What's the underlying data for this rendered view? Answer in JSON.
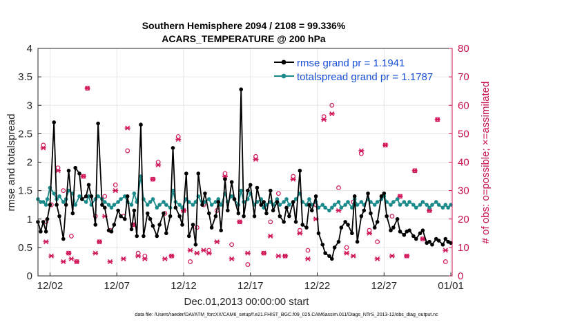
{
  "chart_data": {
    "type": "line",
    "title": "Southern Hemisphere 2094 / 2108 = 99.336%",
    "subtitle": "ACARS_TEMPERATURE @ 200 hPa",
    "xlabel": "Dec.01,2013 00:00:00 start",
    "ylabel": "rmse and totalspread",
    "ylabel_right": "# of obs: o=possible; ×=assimilated",
    "footnote": "data file: /Users/raeder/DAI/ATM_forcXX/CAM6_setup/f.e21.FHIST_BGC.f09_025.CAM6assim.011/Diags_NTrS_2013-12/obs_diag_output.nc",
    "xlim": [
      0.6,
      31.6
    ],
    "ylim": [
      0,
      4
    ],
    "ylim_right": [
      0,
      80
    ],
    "x_ticks": [
      1.5,
      6.5,
      11.5,
      16.5,
      21.5,
      26.5,
      31.5
    ],
    "x_tick_labels": [
      "12/02",
      "12/07",
      "12/12",
      "12/17",
      "12/22",
      "12/27",
      "01/01"
    ],
    "y_ticks": [
      0,
      0.5,
      1,
      1.5,
      2,
      2.5,
      3,
      3.5,
      4
    ],
    "y_tick_labels": [
      "0",
      "0.5",
      "1",
      "1.5",
      "2",
      "2.5",
      "3",
      "3.5",
      "4"
    ],
    "y_ticks_right": [
      0,
      10,
      20,
      30,
      40,
      50,
      60,
      70,
      80
    ],
    "y_tick_labels_right": [
      "0",
      "10",
      "20",
      "30",
      "40",
      "50",
      "60",
      "70",
      "80"
    ],
    "grid": true,
    "legend_position": "top-right",
    "colors": {
      "rmse": "#000000",
      "spread": "#1a8a8a",
      "obs": "#d1185a",
      "legend_text": "#1a4fd6"
    },
    "series": [
      {
        "name": "rmse grand pr = 1.1941",
        "x": [
          0.6,
          0.8,
          1.0,
          1.2,
          1.3,
          1.5,
          1.8,
          2.0,
          2.2,
          2.5,
          2.7,
          2.9,
          3.2,
          3.4,
          3.7,
          3.9,
          4.2,
          4.4,
          4.6,
          4.9,
          5.1,
          5.4,
          5.6,
          5.9,
          6.1,
          6.3,
          6.6,
          6.8,
          7.1,
          7.3,
          7.6,
          7.8,
          8.0,
          8.3,
          8.5,
          8.8,
          9.0,
          9.2,
          9.5,
          9.7,
          10.0,
          10.2,
          10.5,
          10.7,
          10.9,
          11.2,
          11.4,
          11.7,
          11.9,
          12.2,
          12.4,
          12.6,
          12.9,
          13.1,
          13.4,
          13.6,
          13.9,
          14.1,
          14.3,
          14.6,
          14.8,
          15.1,
          15.3,
          15.6,
          15.8,
          16.0,
          16.3,
          16.5,
          16.8,
          17.0,
          17.3,
          17.5,
          17.7,
          18.0,
          18.2,
          18.5,
          18.7,
          19.0,
          19.2,
          19.4,
          19.7,
          19.9,
          20.2,
          20.4,
          20.7,
          20.9,
          21.1,
          21.4,
          21.6,
          21.9,
          22.1,
          22.4,
          22.6,
          22.8,
          23.1,
          23.3,
          23.6,
          23.8,
          24.1,
          24.3,
          24.5,
          24.8,
          25.0,
          25.3,
          25.5,
          25.8,
          26.0,
          26.3,
          26.5,
          26.7,
          27.0,
          27.2,
          27.5,
          27.7,
          28.0,
          28.2,
          28.4,
          28.7,
          28.9,
          29.2,
          29.4,
          29.7,
          29.9,
          30.1,
          30.4,
          30.6,
          30.9,
          31.1,
          31.3,
          31.5
        ],
        "values": [
          0.95,
          0.78,
          0.95,
          0.78,
          1.0,
          1.25,
          2.7,
          1.25,
          1.05,
          0.65,
          1.25,
          1.85,
          1.1,
          1.9,
          1.8,
          1.35,
          1.4,
          1.6,
          1.4,
          0.9,
          2.68,
          1.25,
          1.2,
          0.8,
          0.78,
          0.9,
          1.15,
          1.05,
          1.0,
          1.4,
          0.82,
          1.15,
          0.7,
          2.66,
          0.7,
          1.1,
          1.0,
          0.88,
          0.7,
          0.9,
          1.1,
          0.75,
          1.05,
          2.25,
          1.2,
          1.05,
          0.9,
          1.8,
          0.7,
          0.9,
          0.55,
          1.8,
          1.25,
          1.45,
          1.1,
          0.85,
          1.05,
          1.3,
          0.8,
          1.7,
          1.15,
          1.65,
          1.35,
          1.1,
          3.28,
          1.05,
          1.5,
          1.6,
          1.05,
          1.55,
          1.25,
          1.3,
          1.1,
          1.5,
          1.15,
          1.3,
          1.05,
          0.95,
          1.2,
          1.05,
          1.3,
          0.95,
          1.85,
          0.9,
          0.85,
          1.25,
          1.15,
          1.4,
          0.75,
          0.55,
          0.4,
          0.35,
          0.3,
          0.5,
          0.6,
          0.85,
          0.95,
          0.9,
          0.75,
          1.4,
          0.6,
          1.05,
          1.15,
          1.45,
          1.1,
          0.85,
          0.95,
          1.4,
          1.45,
          1.05,
          0.8,
          0.85,
          1.0,
          0.78,
          0.72,
          0.78,
          0.8,
          0.7,
          0.65,
          0.75,
          0.8,
          0.58,
          0.6,
          0.55,
          0.65,
          0.62,
          0.55,
          0.65,
          0.6,
          0.58
        ]
      },
      {
        "name": "totalspread grand pr = 1.1787",
        "x": [
          0.6,
          0.8,
          1.0,
          1.2,
          1.3,
          1.5,
          1.8,
          2.0,
          2.2,
          2.5,
          2.7,
          2.9,
          3.2,
          3.4,
          3.7,
          3.9,
          4.2,
          4.4,
          4.6,
          4.9,
          5.1,
          5.4,
          5.6,
          5.9,
          6.1,
          6.3,
          6.6,
          6.8,
          7.1,
          7.3,
          7.6,
          7.8,
          8.0,
          8.3,
          8.5,
          8.8,
          9.0,
          9.2,
          9.5,
          9.7,
          10.0,
          10.2,
          10.5,
          10.7,
          10.9,
          11.2,
          11.4,
          11.7,
          11.9,
          12.2,
          12.4,
          12.6,
          12.9,
          13.1,
          13.4,
          13.6,
          13.9,
          14.1,
          14.3,
          14.6,
          14.8,
          15.1,
          15.3,
          15.6,
          15.8,
          16.0,
          16.3,
          16.5,
          16.8,
          17.0,
          17.3,
          17.5,
          17.7,
          18.0,
          18.2,
          18.5,
          18.7,
          19.0,
          19.2,
          19.4,
          19.7,
          19.9,
          20.2,
          20.4,
          20.7,
          20.9,
          21.1,
          21.4,
          21.6,
          21.9,
          22.1,
          22.4,
          22.6,
          22.8,
          23.1,
          23.3,
          23.6,
          23.8,
          24.1,
          24.3,
          24.5,
          24.8,
          25.0,
          25.3,
          25.5,
          25.8,
          26.0,
          26.3,
          26.5,
          26.7,
          27.0,
          27.2,
          27.5,
          27.7,
          28.0,
          28.2,
          28.4,
          28.7,
          28.9,
          29.2,
          29.4,
          29.7,
          29.9,
          30.1,
          30.4,
          30.6,
          30.9,
          31.1,
          31.3,
          31.5
        ],
        "values": [
          1.35,
          1.3,
          1.3,
          1.25,
          1.35,
          1.55,
          1.45,
          1.35,
          1.4,
          1.3,
          1.35,
          1.5,
          1.45,
          1.25,
          1.4,
          1.35,
          1.3,
          1.4,
          1.25,
          1.35,
          1.4,
          1.35,
          1.3,
          1.25,
          1.2,
          1.25,
          1.3,
          1.35,
          1.4,
          1.3,
          1.25,
          1.45,
          1.3,
          1.75,
          1.35,
          1.25,
          1.3,
          1.35,
          1.2,
          1.25,
          1.3,
          1.25,
          1.2,
          1.5,
          1.3,
          1.25,
          1.2,
          1.35,
          1.3,
          1.25,
          1.3,
          1.4,
          1.25,
          1.3,
          1.35,
          1.25,
          1.3,
          1.35,
          1.25,
          1.45,
          1.3,
          1.4,
          1.35,
          1.25,
          1.5,
          1.3,
          1.35,
          1.45,
          1.25,
          1.3,
          1.35,
          1.2,
          1.25,
          1.3,
          1.25,
          1.35,
          1.25,
          1.3,
          1.35,
          1.25,
          1.3,
          1.35,
          1.45,
          1.3,
          1.25,
          1.35,
          1.25,
          1.3,
          1.2,
          1.25,
          1.2,
          1.15,
          1.2,
          1.25,
          1.3,
          1.2,
          1.25,
          1.3,
          1.2,
          1.35,
          1.25,
          1.3,
          1.25,
          1.35,
          1.3,
          1.25,
          1.3,
          1.35,
          1.4,
          1.3,
          1.25,
          1.3,
          1.35,
          1.25,
          1.3,
          1.25,
          1.3,
          1.25,
          1.2,
          1.25,
          1.3,
          1.25,
          1.2,
          1.25,
          1.3,
          1.25,
          1.2,
          1.25,
          1.2,
          1.25
        ]
      }
    ],
    "obs_possible": {
      "x": [
        1.0,
        1.2,
        1.6,
        2.1,
        2.5,
        2.9,
        3.1,
        3.5,
        4.0,
        4.3,
        4.9,
        5.2,
        5.6,
        6.0,
        6.4,
        7.0,
        7.3,
        7.7,
        8.1,
        8.6,
        9.2,
        9.6,
        10.1,
        10.6,
        11.1,
        11.5,
        12.0,
        12.5,
        13.0,
        13.4,
        14.0,
        14.6,
        15.1,
        15.7,
        16.3,
        16.9,
        17.5,
        18.0,
        18.6,
        19.1,
        19.7,
        20.2,
        20.8,
        21.4,
        22.0,
        22.6,
        23.1,
        23.7,
        24.2,
        24.8,
        25.4,
        26.0,
        26.6,
        27.1,
        27.7,
        28.2,
        28.8,
        29.4,
        29.9,
        30.5,
        31.1
      ],
      "values": [
        46,
        19,
        25,
        38,
        30,
        8,
        14,
        5,
        35,
        66,
        21,
        12,
        28,
        16,
        32,
        21,
        44,
        18,
        8,
        7,
        34,
        40,
        22,
        7,
        49,
        23,
        5,
        17,
        25,
        9,
        23,
        36,
        11,
        19,
        4,
        42,
        8,
        19,
        29,
        7,
        35,
        16,
        9,
        25,
        56,
        60,
        31,
        10,
        26,
        43,
        16,
        12,
        46,
        21,
        28,
        7,
        37,
        13,
        23,
        55,
        5
      ],
      "marker": "o"
    },
    "obs_assimilated": {
      "x": [
        1.0,
        1.2,
        1.6,
        2.1,
        2.5,
        2.9,
        3.1,
        3.5,
        4.0,
        4.3,
        4.9,
        5.2,
        5.6,
        6.0,
        6.4,
        7.0,
        7.3,
        7.7,
        8.1,
        8.6,
        9.2,
        9.6,
        10.1,
        10.6,
        11.1,
        11.5,
        12.0,
        12.5,
        13.0,
        13.4,
        14.0,
        14.6,
        15.1,
        15.7,
        16.3,
        16.9,
        17.5,
        18.0,
        18.6,
        19.1,
        19.7,
        20.2,
        20.8,
        21.4,
        22.0,
        22.6,
        23.1,
        23.7,
        24.2,
        24.8,
        25.4,
        26.0,
        26.6,
        27.1,
        27.7,
        28.2,
        28.8,
        29.4,
        29.9,
        30.5,
        31.1
      ],
      "values": [
        45,
        12,
        7,
        37,
        5,
        8,
        6,
        5,
        35,
        66,
        8,
        12,
        21,
        5,
        30,
        6,
        52,
        18,
        7,
        6,
        34,
        39,
        6,
        7,
        48,
        23,
        9,
        8,
        9,
        8,
        12,
        35,
        6,
        19,
        8,
        41,
        8,
        14,
        7,
        7,
        34,
        15,
        6,
        20,
        55,
        57,
        23,
        8,
        7,
        44,
        15,
        6,
        46,
        7,
        28,
        7,
        37,
        13,
        23,
        55,
        9
      ],
      "marker": "x"
    }
  }
}
